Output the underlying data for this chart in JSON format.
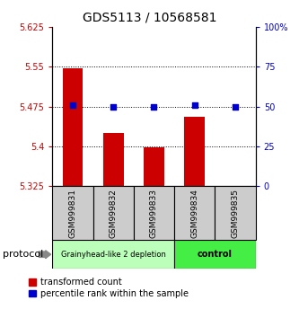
{
  "title": "GDS5113 / 10568581",
  "samples": [
    "GSM999831",
    "GSM999832",
    "GSM999833",
    "GSM999834",
    "GSM999835"
  ],
  "bar_values": [
    5.548,
    5.425,
    5.398,
    5.455,
    5.325
  ],
  "bar_bottom": 5.325,
  "percentile_values": [
    51,
    50,
    50,
    51,
    50
  ],
  "bar_color": "#cc0000",
  "dot_color": "#0000cc",
  "ylim_left": [
    5.325,
    5.625
  ],
  "ylim_right": [
    0,
    100
  ],
  "yticks_left": [
    5.325,
    5.4,
    5.475,
    5.55,
    5.625
  ],
  "yticks_right": [
    0,
    25,
    50,
    75,
    100
  ],
  "ytick_labels_left": [
    "5.325",
    "5.4",
    "5.475",
    "5.55",
    "5.625"
  ],
  "ytick_labels_right": [
    "0",
    "25",
    "50",
    "75",
    "100%"
  ],
  "hline_values": [
    5.55,
    5.475,
    5.4
  ],
  "group1_indices": [
    0,
    1,
    2
  ],
  "group2_indices": [
    3,
    4
  ],
  "group1_label": "Grainyhead-like 2 depletion",
  "group2_label": "control",
  "group1_color": "#bbffbb",
  "group2_color": "#44ee44",
  "sample_box_color": "#cccccc",
  "protocol_label": "protocol",
  "legend_red_label": "transformed count",
  "legend_blue_label": "percentile rank within the sample",
  "title_fontsize": 10,
  "tick_fontsize": 7,
  "sample_fontsize": 6.5,
  "group_fontsize1": 6,
  "group_fontsize2": 7,
  "legend_fontsize": 7,
  "protocol_fontsize": 8
}
